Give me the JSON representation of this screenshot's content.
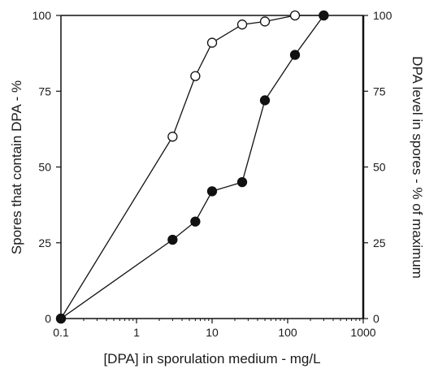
{
  "chart_data": {
    "type": "line",
    "title": "",
    "xlabel": "[DPA] in sporulation medium - mg/L",
    "ylabel": "Spores that contain DPA - %",
    "y2label": "DPA level in spores - % of maximum",
    "xscale": "log",
    "xlim": [
      0.1,
      1000
    ],
    "ylim": [
      0,
      100
    ],
    "y2lim": [
      0,
      100
    ],
    "x_ticks": [
      0.1,
      1,
      10,
      100,
      1000
    ],
    "x_tick_labels": [
      "0.1",
      "1",
      "10",
      "100",
      "1000"
    ],
    "y_ticks": [
      0,
      25,
      50,
      75,
      100
    ],
    "y_tick_labels": [
      "0",
      "25",
      "50",
      "75",
      "100"
    ],
    "y2_tick_labels": [
      "0",
      "25",
      "50",
      "75",
      "100"
    ],
    "grid": false,
    "legend": "none",
    "series": [
      {
        "marker": "open-circle",
        "axis": "left",
        "x": [
          0.1,
          3,
          6,
          10,
          25,
          50,
          125,
          300
        ],
        "y": [
          0,
          60,
          80,
          91,
          97,
          98,
          100,
          100
        ]
      },
      {
        "marker": "filled-circle",
        "axis": "right",
        "x": [
          0.1,
          3,
          6,
          10,
          25,
          50,
          125,
          300
        ],
        "y": [
          0,
          26,
          32,
          42,
          45,
          72,
          87,
          100
        ]
      }
    ]
  }
}
